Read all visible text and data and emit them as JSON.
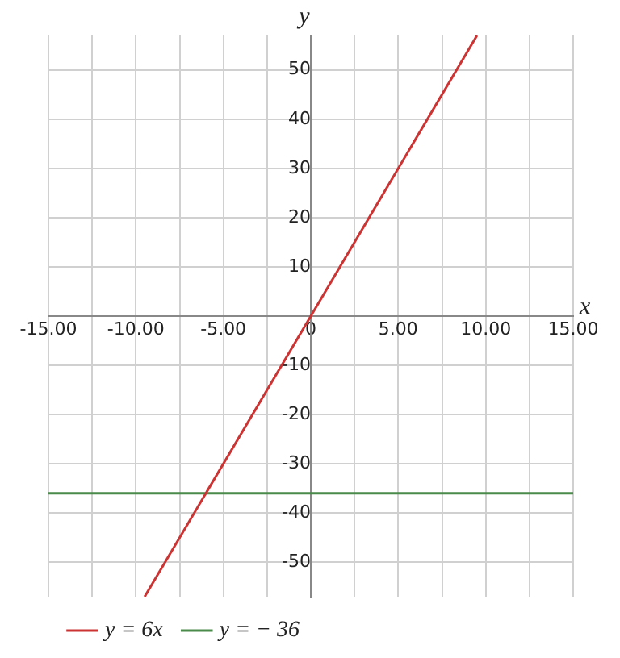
{
  "chart_data": {
    "type": "line",
    "xlabel": "x",
    "ylabel": "y",
    "xlim": [
      -15,
      15
    ],
    "ylim": [
      -57,
      57
    ],
    "xticks": [
      {
        "value": -15,
        "label": "-15.00"
      },
      {
        "value": -12.5,
        "label": null
      },
      {
        "value": -10,
        "label": "-10.00"
      },
      {
        "value": -7.5,
        "label": null
      },
      {
        "value": -5,
        "label": "-5.00"
      },
      {
        "value": -2.5,
        "label": null
      },
      0,
      {
        "value": 2.5,
        "label": null
      },
      {
        "value": 5,
        "label": "5.00"
      },
      {
        "value": 7.5,
        "label": null
      },
      {
        "value": 10,
        "label": "10.00"
      },
      {
        "value": 12.5,
        "label": null
      },
      {
        "value": 15,
        "label": "15.00"
      }
    ],
    "yticks": [
      -50,
      -40,
      -30,
      -20,
      -10,
      {
        "value": 0,
        "label": null
      },
      10,
      20,
      30,
      40,
      50
    ],
    "grid": true,
    "legend": "bottom left",
    "marker": "none",
    "line_style": "solid",
    "series": [
      {
        "name": "y = 6x",
        "color": "#cc3333",
        "x": [
          -9.5,
          9.5
        ],
        "values": [
          -57,
          57
        ]
      },
      {
        "name": "y = − 36",
        "color": "#4a8a4a",
        "x": [
          -15,
          15
        ],
        "values": [
          -36,
          -36
        ]
      }
    ]
  }
}
